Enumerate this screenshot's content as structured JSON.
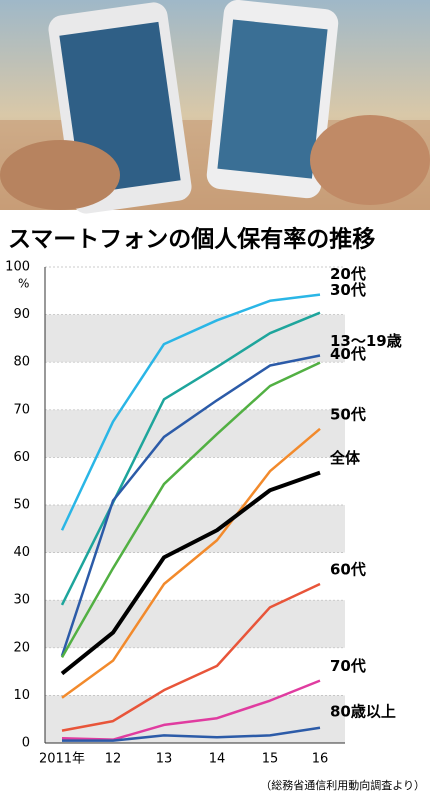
{
  "chart_data": {
    "type": "line",
    "title": "スマートフォンの個人保有率の推移",
    "y_unit": "%",
    "source": "（総務省通信利用動向調査より）",
    "categories": [
      "2011年",
      "12",
      "13",
      "14",
      "15",
      "16"
    ],
    "ylim": [
      0,
      100
    ],
    "yticks": [
      0,
      10,
      20,
      30,
      40,
      50,
      60,
      70,
      80,
      90,
      100
    ],
    "grid": true,
    "series": [
      {
        "name": "20代",
        "color": "#2ab6e6",
        "values": [
          44.7,
          67.5,
          83.8,
          88.8,
          92.9,
          94.2
        ]
      },
      {
        "name": "30代",
        "color": "#1ea59c",
        "values": [
          29.0,
          50.5,
          72.2,
          79.0,
          86.1,
          90.4
        ]
      },
      {
        "name": "13〜19歳",
        "color": "#2c5ba8",
        "values": [
          18.3,
          50.9,
          64.3,
          72.0,
          79.3,
          81.4
        ]
      },
      {
        "name": "40代",
        "color": "#52b043",
        "values": [
          18.0,
          36.7,
          54.4,
          64.9,
          75.0,
          79.9
        ]
      },
      {
        "name": "50代",
        "color": "#f28a2c",
        "values": [
          9.5,
          17.3,
          33.4,
          42.6,
          57.1,
          66.0
        ]
      },
      {
        "name": "全体",
        "color": "#000000",
        "values": [
          14.6,
          23.2,
          39.0,
          44.7,
          53.1,
          56.8
        ]
      },
      {
        "name": "60代",
        "color": "#e8553a",
        "values": [
          2.6,
          4.6,
          11.1,
          16.2,
          28.5,
          33.4
        ]
      },
      {
        "name": "70代",
        "color": "#e03ca0",
        "values": [
          1.0,
          0.7,
          3.8,
          5.2,
          8.9,
          13.1
        ]
      },
      {
        "name": "80歳以上",
        "color": "#2c5ba8",
        "values": [
          0.5,
          0.5,
          1.6,
          1.2,
          1.6,
          3.2
        ]
      }
    ]
  }
}
